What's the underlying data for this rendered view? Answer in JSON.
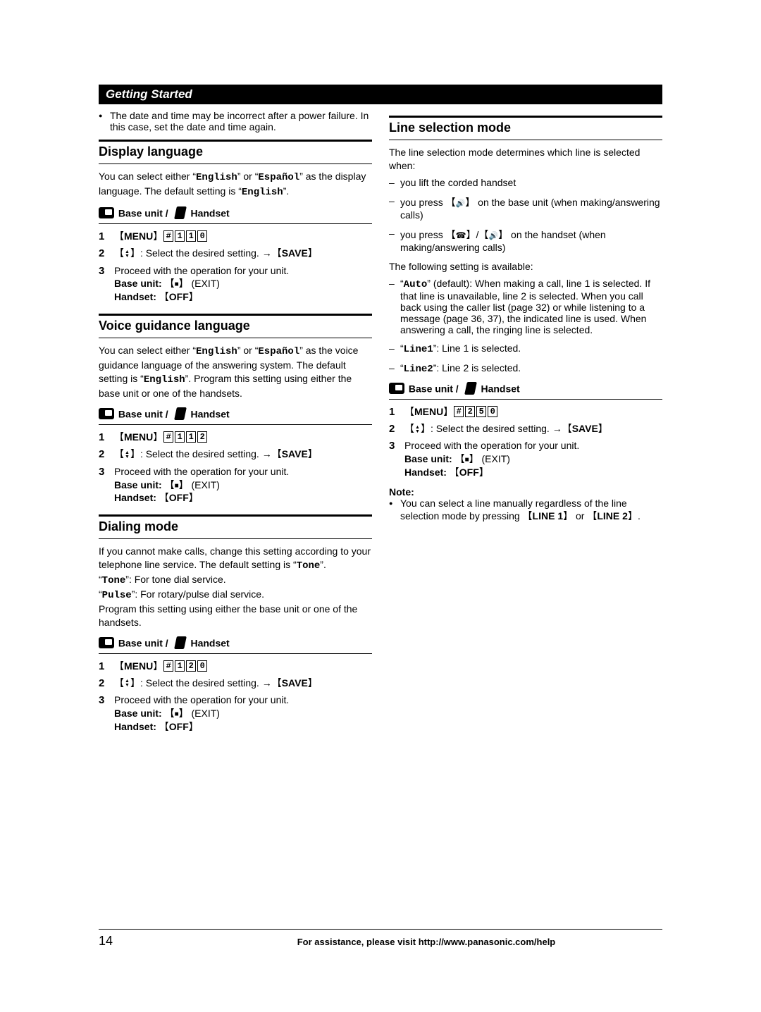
{
  "header": "Getting Started",
  "top_note": "The date and time may be incorrect after a power failure. In this case, set the date and time again.",
  "common": {
    "badge_label": "Base unit / ",
    "badge_handset": "Handset",
    "menu_label": "MENU",
    "save_label": "SAVE",
    "off_label": "OFF",
    "exit_label": " (EXIT)",
    "step2_text": ": Select the desired setting. ",
    "step3_line1": "Proceed with the operation for your unit.",
    "step3_base": "Base unit: ",
    "step3_hand": "Handset: "
  },
  "display_lang": {
    "title": "Display language",
    "body_a": "You can select either “",
    "body_eng": "English",
    "body_b": "” or “",
    "body_esp": "Español",
    "body_c": "” as the display language. The default setting is “",
    "body_d": "”.",
    "code": [
      "#",
      "1",
      "1",
      "0"
    ]
  },
  "voice_lang": {
    "title": "Voice guidance language",
    "body_a": "You can select either “",
    "body_eng": "English",
    "body_b": "” or “",
    "body_esp": "Español",
    "body_c": "” as the voice guidance language of the answering system. The default setting is “",
    "body_d": "”.",
    "body_e": "Program this setting using either the base unit or one of the handsets.",
    "code": [
      "#",
      "1",
      "1",
      "2"
    ]
  },
  "dialing": {
    "title": "Dialing mode",
    "body_a": "If you cannot make calls, change this setting according to your telephone line service. The default setting is “",
    "tone": "Tone",
    "body_b": "”.",
    "body_c": "“",
    "body_d": "”: For tone dial service.",
    "pulse": "Pulse",
    "body_e": "”: For rotary/pulse dial service.",
    "body_f": "Program this setting using either the base unit or one of the handsets.",
    "code": [
      "#",
      "1",
      "2",
      "0"
    ]
  },
  "line_sel": {
    "title": "Line selection mode",
    "intro": "The line selection mode determines which line is selected when:",
    "d1": "you lift the corded handset",
    "d2a": "you press ",
    "d2b": " on the base unit (when making/answering calls)",
    "d3a": "you press ",
    "d3b": " on the handset (when making/answering calls)",
    "avail": "The following setting is available:",
    "auto_a": "“",
    "auto": "Auto",
    "auto_b": "” (default): When making a call, line 1 is selected. If that line is unavailable, line 2 is selected. When you call back using the caller list (page 32) or while listening to a message (page 36, 37), the indicated line is used. When answering a call, the ringing line is selected.",
    "l1a": "“",
    "l1": "Line1",
    "l1b": "”: Line 1 is selected.",
    "l2a": "“",
    "l2": "Line2",
    "l2b": "”: Line 2 is selected.",
    "code": [
      "#",
      "2",
      "5",
      "0"
    ],
    "note_head": "Note:",
    "note_a": "You can select a line manually regardless of the line selection mode by pressing ",
    "line1_btn": "LINE 1",
    "note_b": " or ",
    "line2_btn": "LINE 2",
    "note_c": "."
  },
  "footer": {
    "page": "14",
    "text": "For assistance, please visit http://www.panasonic.com/help"
  }
}
